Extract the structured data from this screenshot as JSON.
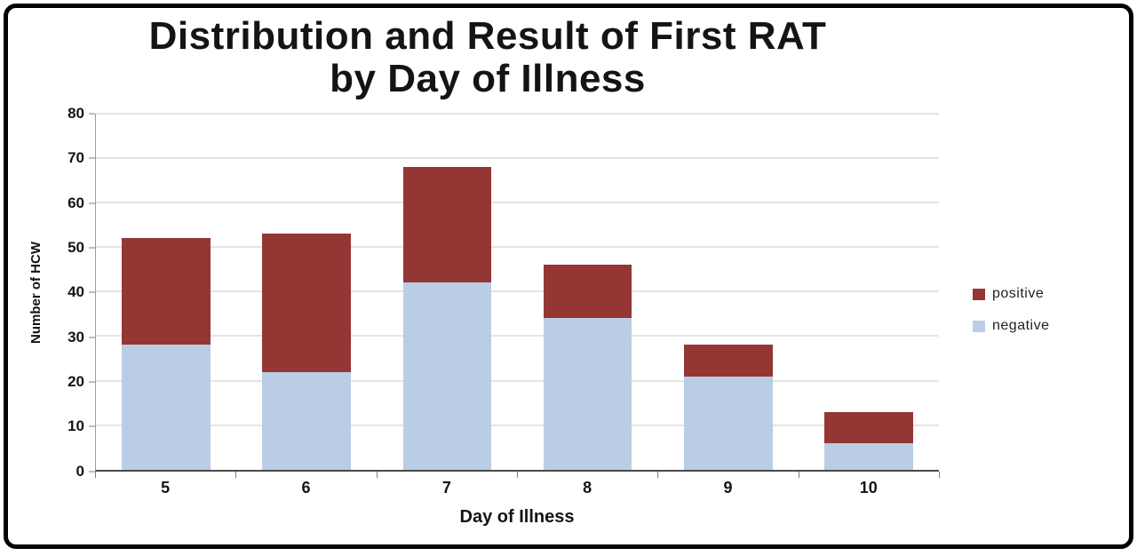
{
  "chart_data": {
    "type": "bar",
    "stacked": true,
    "title": "Distribution and Result of First RAT\nby Day of Illness",
    "xlabel": "Day of Illness",
    "ylabel": "Number of HCW",
    "categories": [
      "5",
      "6",
      "7",
      "8",
      "9",
      "10"
    ],
    "series": [
      {
        "name": "negative",
        "color": "#b9cde5",
        "values": [
          28,
          22,
          42,
          34,
          21,
          6
        ]
      },
      {
        "name": "positive",
        "color": "#943634",
        "values": [
          24,
          31,
          26,
          12,
          7,
          7
        ]
      }
    ],
    "totals": [
      52,
      53,
      68,
      46,
      28,
      13
    ],
    "ylim": [
      0,
      80
    ],
    "yticks": [
      0,
      10,
      20,
      30,
      40,
      50,
      60,
      70,
      80
    ],
    "grid": "horizontal",
    "legend_position": "right",
    "legend": [
      {
        "label": "positive",
        "color": "#943634"
      },
      {
        "label": "negative",
        "color": "#b9cde5"
      }
    ],
    "colors": {
      "gridline": "#c9c9c9",
      "axis": "#4a4a4a",
      "text": "#141414"
    }
  }
}
